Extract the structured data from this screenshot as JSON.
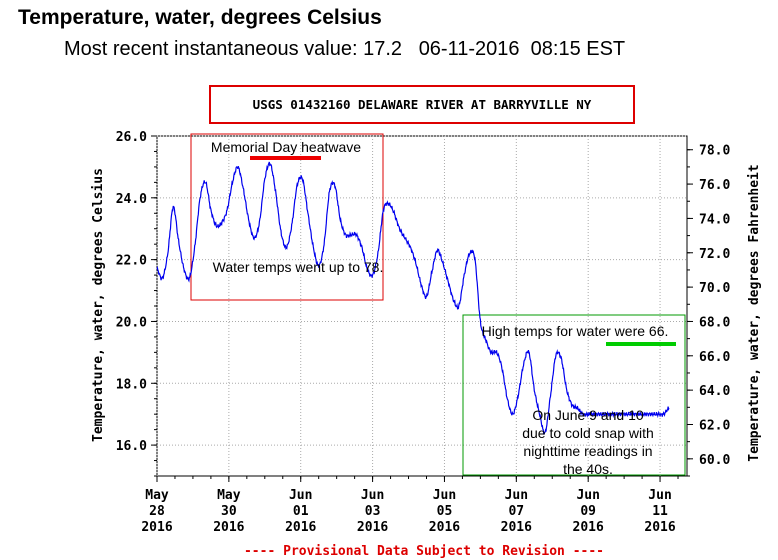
{
  "header": {
    "title": "Temperature, water, degrees Celsius",
    "recent_label": "Most recent instantaneous value:",
    "recent_value": "17.2",
    "recent_date": "06-11-2016",
    "recent_time": "08:15 EST"
  },
  "colors": {
    "series": "#0000ee",
    "red_box": "#dd0000",
    "green_box": "#009900",
    "grid": "#aaaaaa",
    "red_bar": "#ee0000",
    "green_bar": "#00cc00"
  },
  "chart_data": {
    "type": "line",
    "title": "USGS 01432160 DELAWARE RIVER AT BARRYVILLE NY",
    "ylabel": "Temperature, water, degrees Celsius",
    "ylabel_right": "Temperature, water, degrees Fahrenheit",
    "footer": "---- Provisional Data Subject to Revision ----",
    "ylim": [
      15,
      26
    ],
    "y_ticks": [
      "26.0",
      "24.0",
      "22.0",
      "20.0",
      "18.0",
      "16.0"
    ],
    "y_tick_values": [
      26,
      24,
      22,
      20,
      18,
      16
    ],
    "y2_ticks": [
      "78.0",
      "76.0",
      "74.0",
      "72.0",
      "70.0",
      "68.0",
      "66.0",
      "64.0",
      "62.0",
      "60.0"
    ],
    "y2_tick_values": [
      78,
      76,
      74,
      72,
      70,
      68,
      66,
      64,
      62,
      60
    ],
    "x_ticks": [
      {
        "d": 0,
        "l1": "May",
        "l2": "28",
        "l3": "2016"
      },
      {
        "d": 2,
        "l1": "May",
        "l2": "30",
        "l3": "2016"
      },
      {
        "d": 4,
        "l1": "Jun",
        "l2": "01",
        "l3": "2016"
      },
      {
        "d": 6,
        "l1": "Jun",
        "l2": "03",
        "l3": "2016"
      },
      {
        "d": 8,
        "l1": "Jun",
        "l2": "05",
        "l3": "2016"
      },
      {
        "d": 10,
        "l1": "Jun",
        "l2": "07",
        "l3": "2016"
      },
      {
        "d": 12,
        "l1": "Jun",
        "l2": "09",
        "l3": "2016"
      },
      {
        "d": 14,
        "l1": "Jun",
        "l2": "11",
        "l3": "2016"
      }
    ],
    "xlim": [
      0,
      14.75
    ],
    "grid": true,
    "series": [
      {
        "x": [
          0,
          0.15,
          0.3,
          0.45,
          0.6,
          0.75,
          0.9,
          1.05,
          1.2,
          1.35,
          1.5,
          1.65,
          1.8,
          1.95,
          2.1,
          2.25,
          2.4,
          2.55,
          2.7,
          2.85,
          3.0,
          3.15,
          3.3,
          3.45,
          3.6,
          3.75,
          3.9,
          4.05,
          4.2,
          4.35,
          4.5,
          4.65,
          4.8,
          4.95,
          5.1,
          5.25,
          5.4,
          5.55,
          5.7,
          5.85,
          6.0,
          6.15,
          6.3,
          6.45,
          6.6,
          6.75,
          6.9,
          7.05,
          7.2,
          7.35,
          7.5,
          7.65,
          7.8,
          7.95,
          8.1,
          8.25,
          8.4,
          8.55,
          8.7,
          8.85,
          9.0,
          9.15,
          9.3,
          9.45,
          9.6,
          9.75,
          9.9,
          10.05,
          10.2,
          10.35,
          10.5,
          10.65,
          10.8,
          10.95,
          11.1,
          11.25,
          11.4,
          11.55,
          11.7,
          11.85,
          12.0,
          12.15,
          12.3,
          12.45,
          12.6,
          12.75,
          12.9,
          13.05,
          13.2,
          13.35,
          13.5,
          13.65,
          13.8,
          13.95,
          14.1,
          14.25
        ],
        "values": [
          21.7,
          21.4,
          22.2,
          23.7,
          22.6,
          21.7,
          21.4,
          22.4,
          24.0,
          24.5,
          23.6,
          23.1,
          23.2,
          23.6,
          24.5,
          25.0,
          24.3,
          23.3,
          22.7,
          23.2,
          24.6,
          25.1,
          24.2,
          22.9,
          22.4,
          23.1,
          24.4,
          24.6,
          23.5,
          22.4,
          21.8,
          22.5,
          24.2,
          24.4,
          23.3,
          22.8,
          22.8,
          22.8,
          22.4,
          21.7,
          21.5,
          22.2,
          23.6,
          23.8,
          23.5,
          23.0,
          22.7,
          22.4,
          21.9,
          21.2,
          20.8,
          21.6,
          22.3,
          21.9,
          21.3,
          20.7,
          20.5,
          21.5,
          22.2,
          22.0,
          20.0,
          19.4,
          19.0,
          19.0,
          18.5,
          17.5,
          17.0,
          17.6,
          18.6,
          19.0,
          17.8,
          17.0,
          16.4,
          17.6,
          18.9,
          18.8,
          17.8,
          17.3,
          17.2,
          17.0,
          17.0,
          17.0,
          17.0,
          17.0,
          17.0,
          17.0,
          17.0,
          17.0,
          17.0,
          17.0,
          17.0,
          17.0,
          17.0,
          17.0,
          17.0,
          17.2
        ]
      }
    ],
    "annotations": {
      "memorial_title": "Memorial Day heatwave",
      "memorial_text": "Water temps went up to 78.",
      "high_title": "High temps for water were 66.",
      "cold_text": [
        "On June 9 and 10",
        "due to cold snap with",
        "nighttime readings in",
        "the 40s."
      ]
    }
  }
}
